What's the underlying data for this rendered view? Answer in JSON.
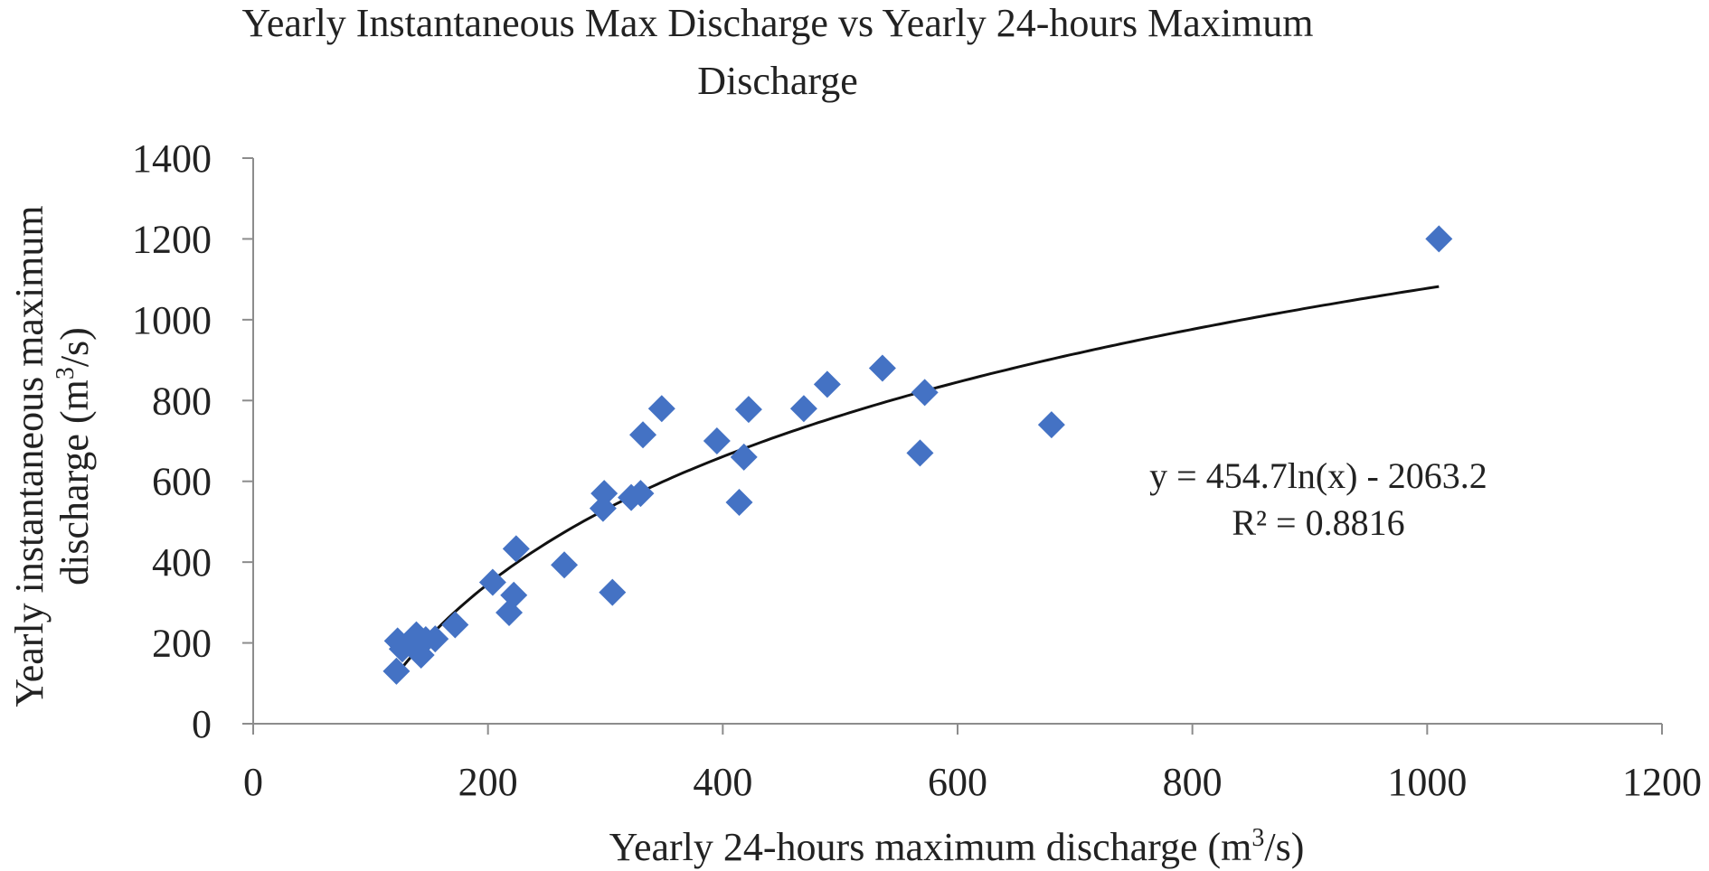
{
  "chart_data": {
    "type": "scatter",
    "title_lines": [
      "Yearly Instantaneous Max Discharge vs Yearly 24-hours Maximum",
      "Discharge"
    ],
    "xlabel": {
      "before": "Yearly 24-hours maximum discharge (m",
      "sup": "3",
      "after": "/s)"
    },
    "ylabel": {
      "line1": "Yearly instantaneous maximum",
      "line2_before": "discharge (m",
      "line2_sup": "3",
      "line2_after": "/s)"
    },
    "xlim": [
      0,
      1200
    ],
    "ylim": [
      0,
      1400
    ],
    "xticks": [
      0,
      200,
      400,
      600,
      800,
      1000,
      1200
    ],
    "yticks": [
      0,
      200,
      400,
      600,
      800,
      1000,
      1200,
      1400
    ],
    "grid": false,
    "series": [
      {
        "marker": "diamond",
        "color": "#4472c4",
        "points": [
          {
            "x": 122,
            "y": 130
          },
          {
            "x": 123,
            "y": 205
          },
          {
            "x": 127,
            "y": 185
          },
          {
            "x": 133,
            "y": 200
          },
          {
            "x": 139,
            "y": 220
          },
          {
            "x": 143,
            "y": 170
          },
          {
            "x": 147,
            "y": 208
          },
          {
            "x": 155,
            "y": 210
          },
          {
            "x": 172,
            "y": 245
          },
          {
            "x": 204,
            "y": 350
          },
          {
            "x": 218,
            "y": 275
          },
          {
            "x": 222,
            "y": 318
          },
          {
            "x": 224,
            "y": 433
          },
          {
            "x": 265,
            "y": 393
          },
          {
            "x": 298,
            "y": 533
          },
          {
            "x": 299,
            "y": 570
          },
          {
            "x": 306,
            "y": 325
          },
          {
            "x": 322,
            "y": 560
          },
          {
            "x": 330,
            "y": 570
          },
          {
            "x": 332,
            "y": 715
          },
          {
            "x": 348,
            "y": 780
          },
          {
            "x": 395,
            "y": 700
          },
          {
            "x": 414,
            "y": 548
          },
          {
            "x": 418,
            "y": 660
          },
          {
            "x": 422,
            "y": 778
          },
          {
            "x": 469,
            "y": 780
          },
          {
            "x": 489,
            "y": 840
          },
          {
            "x": 536,
            "y": 880
          },
          {
            "x": 568,
            "y": 670
          },
          {
            "x": 572,
            "y": 820
          },
          {
            "x": 680,
            "y": 740
          },
          {
            "x": 1010,
            "y": 1200
          }
        ]
      }
    ],
    "trendline": {
      "type": "logarithmic",
      "a": 454.7,
      "b": -2063.2,
      "x_range": [
        122,
        1010
      ],
      "equation": "y = 454.7ln(x) - 2063.2",
      "r_squared": "R² = 0.8816"
    }
  }
}
